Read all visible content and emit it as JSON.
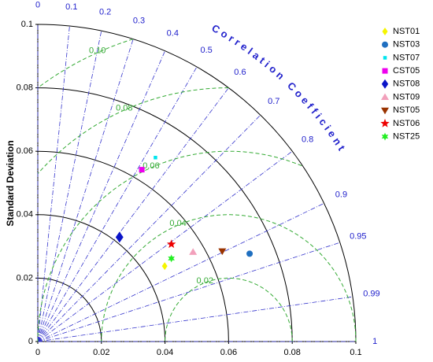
{
  "chart_data": {
    "type": "taylor",
    "y_label": "Standard Deviation",
    "corr_label": "Correlation Coefficient",
    "xlim": [
      0,
      0.1
    ],
    "ylim": [
      0,
      0.1
    ],
    "xticks": [
      0,
      0.02,
      0.04,
      0.06,
      0.08,
      0.1
    ],
    "yticks": [
      0,
      0.02,
      0.04,
      0.06,
      0.08,
      0.1
    ],
    "corr_ticks": [
      0,
      0.1,
      0.2,
      0.3,
      0.4,
      0.5,
      0.6,
      0.7,
      0.8,
      0.9,
      0.95,
      0.99,
      1
    ],
    "reference_std": 0.06,
    "rms_ticks": [
      0.02,
      0.04,
      0.06,
      0.08,
      {
        "value": 0.1,
        "label": "0.10"
      }
    ],
    "grid": true,
    "legend": "upper right",
    "series": [
      {
        "name": "NST01",
        "color": "#f5f500",
        "marker": "diamond",
        "x": [
          0.0399
        ],
        "values": [
          0.0238
        ]
      },
      {
        "name": "NST03",
        "color": "#1f6fc0",
        "marker": "circle",
        "x": [
          0.0666
        ],
        "values": [
          0.0277
        ]
      },
      {
        "name": "NST07",
        "color": "#00e5ee",
        "marker": "square-small",
        "x": [
          0.037
        ],
        "values": [
          0.058
        ]
      },
      {
        "name": "CST05",
        "color": "#ee00ee",
        "marker": "square",
        "x": [
          0.0327
        ],
        "values": [
          0.0542
        ]
      },
      {
        "name": "NST08",
        "color": "#0a14c8",
        "marker": "diamond",
        "x": [
          0.0257
        ],
        "values": [
          0.0329
        ]
      },
      {
        "name": "NST09",
        "color": "#f2a0bb",
        "marker": "triangle-up",
        "x": [
          0.0488
        ],
        "values": [
          0.0282
        ]
      },
      {
        "name": "NST05",
        "color": "#993300",
        "marker": "triangle-down",
        "x": [
          0.058
        ],
        "values": [
          0.0285
        ]
      },
      {
        "name": "NST06",
        "color": "#ee0000",
        "marker": "star",
        "x": [
          0.042
        ],
        "values": [
          0.0307
        ]
      },
      {
        "name": "NST25",
        "color": "#22ee22",
        "marker": "star6",
        "x": [
          0.042
        ],
        "values": [
          0.0262
        ]
      }
    ]
  }
}
